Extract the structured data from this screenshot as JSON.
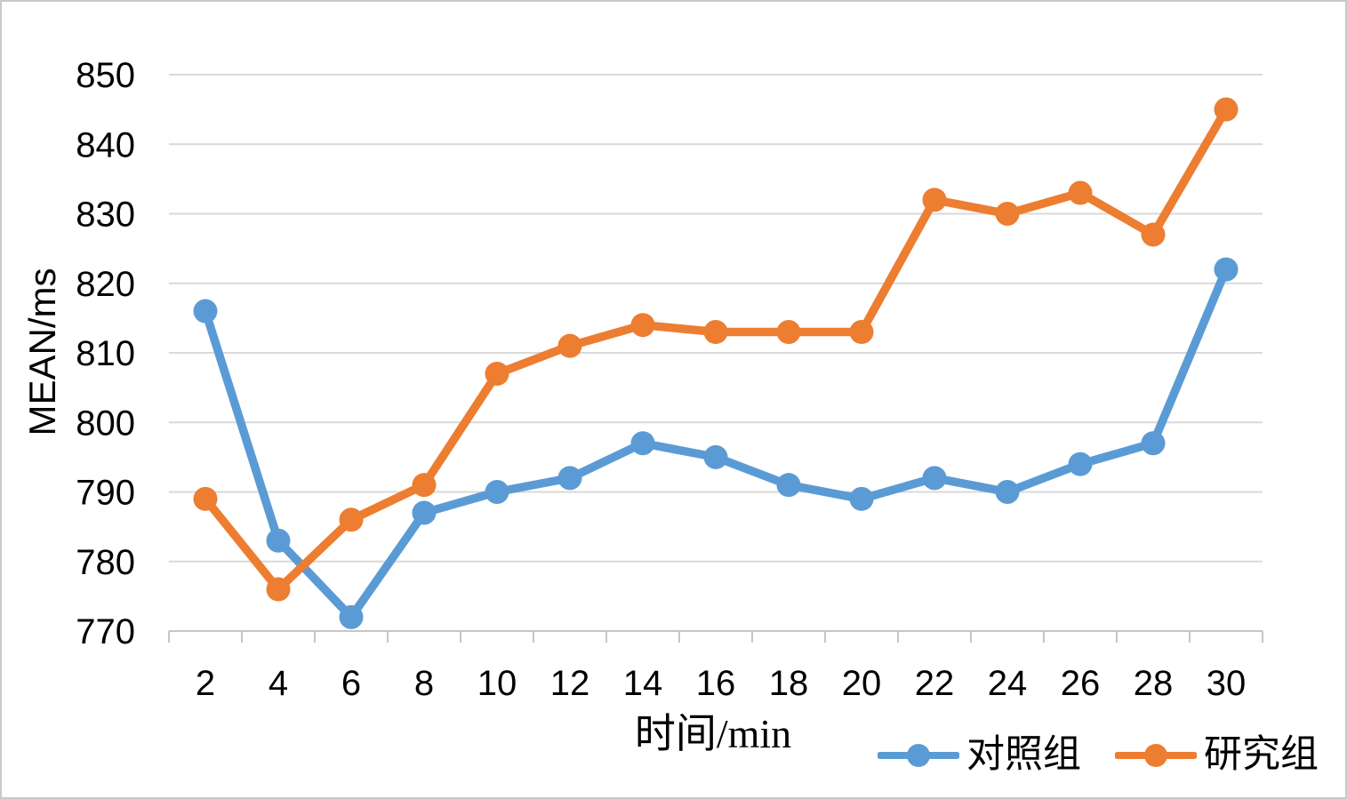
{
  "chart_data": {
    "type": "line",
    "title": "",
    "xlabel": "时间/min",
    "ylabel": "MEAN/ms",
    "categories": [
      2,
      4,
      6,
      8,
      10,
      12,
      14,
      16,
      18,
      20,
      22,
      24,
      26,
      28,
      30
    ],
    "series": [
      {
        "name": "对照组",
        "color": "#5B9BD5",
        "values": [
          816,
          783,
          772,
          787,
          790,
          792,
          797,
          795,
          791,
          789,
          792,
          790,
          794,
          797,
          822
        ]
      },
      {
        "name": "研究组",
        "color": "#ED7D31",
        "values": [
          789,
          776,
          786,
          791,
          807,
          811,
          814,
          813,
          813,
          813,
          832,
          830,
          833,
          827,
          845
        ]
      }
    ],
    "ylim": [
      770,
      850
    ],
    "y_ticks": [
      770,
      780,
      790,
      800,
      810,
      820,
      830,
      840,
      850
    ],
    "grid": true,
    "legend_position": "bottom-right",
    "colors": {
      "gridline": "#D9D9D9",
      "axis": "#C6C6C6",
      "text": "#000000",
      "border": "#C9C9C9",
      "background": "#FFFFFF"
    }
  }
}
